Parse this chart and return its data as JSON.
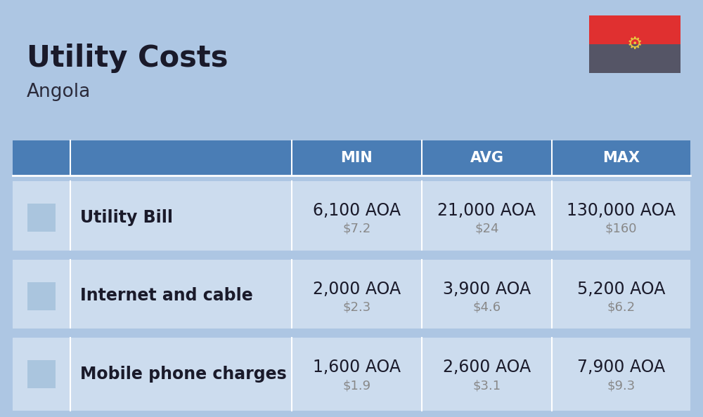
{
  "title": "Utility Costs",
  "subtitle": "Angola",
  "background_color": "#adc6e3",
  "header_bg_color": "#4a7db5",
  "header_text_color": "#ffffff",
  "row_bg_color": "#ccdcee",
  "separator_color": "#b0c4d8",
  "white_gap_color": "#adc6e3",
  "columns": [
    "MIN",
    "AVG",
    "MAX"
  ],
  "rows": [
    {
      "label": "Utility Bill",
      "values_aoa": [
        "6,100 AOA",
        "21,000 AOA",
        "130,000 AOA"
      ],
      "values_usd": [
        "$7.2",
        "$24",
        "$160"
      ]
    },
    {
      "label": "Internet and cable",
      "values_aoa": [
        "2,000 AOA",
        "3,900 AOA",
        "5,200 AOA"
      ],
      "values_usd": [
        "$2.3",
        "$4.6",
        "$6.2"
      ]
    },
    {
      "label": "Mobile phone charges",
      "values_aoa": [
        "1,600 AOA",
        "2,600 AOA",
        "7,900 AOA"
      ],
      "values_usd": [
        "$1.9",
        "$3.1",
        "$9.3"
      ]
    }
  ],
  "title_fontsize": 30,
  "subtitle_fontsize": 19,
  "header_fontsize": 15,
  "cell_aoa_fontsize": 17,
  "cell_usd_fontsize": 13,
  "label_fontsize": 17,
  "flag_red": "#e03030",
  "flag_dark": "#555566",
  "flag_yellow": "#e8c840"
}
